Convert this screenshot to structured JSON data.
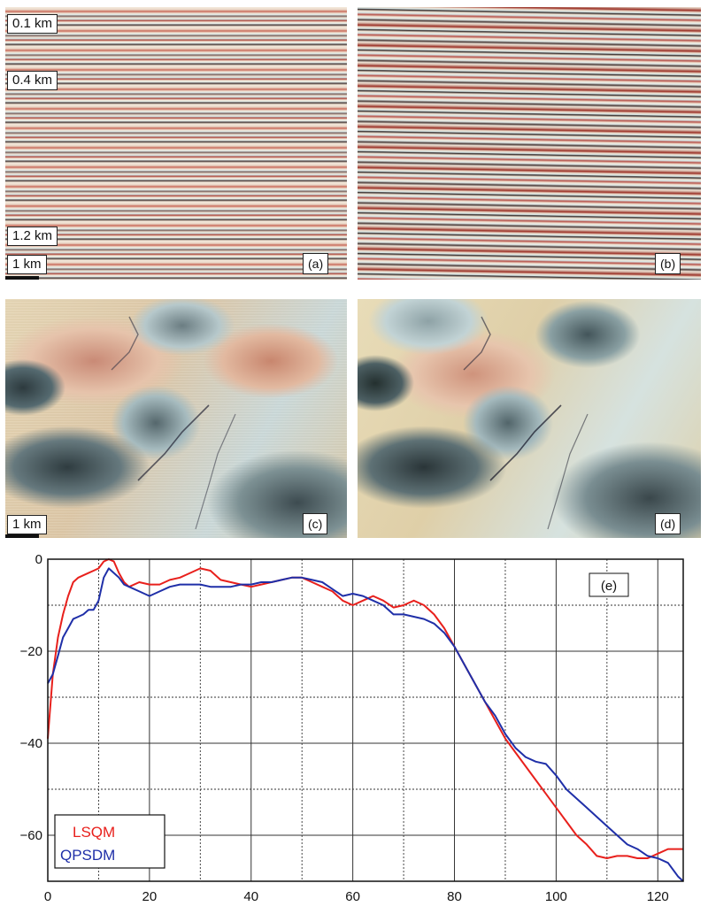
{
  "panels": {
    "a": {
      "tag": "(a)",
      "labels": [
        "0.1 km",
        "0.4 km",
        "1.2 km",
        "1 km"
      ]
    },
    "b": {
      "tag": "(b)"
    },
    "c": {
      "tag": "(c)",
      "scale_label": "1 km"
    },
    "d": {
      "tag": "(d)"
    }
  },
  "chart_data": {
    "type": "line",
    "tag": "(e)",
    "xlim": [
      0,
      125
    ],
    "ylim": [
      -70,
      0
    ],
    "xticks": [
      0,
      20,
      40,
      60,
      80,
      100,
      120
    ],
    "yticks": [
      0,
      -20,
      -40,
      -60
    ],
    "grid": true,
    "legend_position": "bottom-left",
    "series": [
      {
        "name": "LSQM",
        "color": "#e8201c",
        "x": [
          0,
          1,
          2,
          3,
          4,
          5,
          6,
          7,
          8,
          9,
          10,
          11,
          12,
          13,
          14,
          15,
          16,
          18,
          20,
          22,
          24,
          26,
          28,
          30,
          32,
          34,
          36,
          38,
          40,
          42,
          44,
          46,
          48,
          50,
          52,
          54,
          56,
          58,
          60,
          62,
          64,
          66,
          68,
          70,
          72,
          74,
          76,
          78,
          80,
          82,
          84,
          86,
          88,
          90,
          92,
          94,
          96,
          98,
          100,
          102,
          104,
          106,
          108,
          110,
          112,
          114,
          116,
          118,
          120,
          122,
          124,
          125
        ],
        "y": [
          -39,
          -25,
          -17,
          -12,
          -8,
          -5,
          -4,
          -3.5,
          -3,
          -2.5,
          -2,
          -0.5,
          0,
          -0.5,
          -3,
          -5,
          -6,
          -5,
          -5.5,
          -5.5,
          -4.5,
          -4,
          -3,
          -2,
          -2.5,
          -4.5,
          -5,
          -5.5,
          -6,
          -5.5,
          -5,
          -4.5,
          -4,
          -4,
          -5,
          -6,
          -7,
          -9,
          -10,
          -9,
          -8,
          -9,
          -10.5,
          -10,
          -9,
          -10,
          -12,
          -15,
          -19,
          -23,
          -27,
          -31,
          -35,
          -39,
          -42,
          -45,
          -48,
          -51,
          -54,
          -57,
          -60,
          -62,
          -64.5,
          -65,
          -64.5,
          -64.5,
          -65,
          -65,
          -64,
          -63,
          -63,
          -63
        ]
      },
      {
        "name": "QPSDM",
        "color": "#1f2fa8",
        "x": [
          0,
          1,
          2,
          3,
          4,
          5,
          6,
          7,
          8,
          9,
          10,
          11,
          12,
          13,
          14,
          15,
          16,
          18,
          20,
          22,
          24,
          26,
          28,
          30,
          32,
          34,
          36,
          38,
          40,
          42,
          44,
          46,
          48,
          50,
          52,
          54,
          56,
          58,
          60,
          62,
          64,
          66,
          68,
          70,
          72,
          74,
          76,
          78,
          80,
          82,
          84,
          86,
          88,
          90,
          92,
          94,
          96,
          98,
          100,
          102,
          104,
          106,
          108,
          110,
          112,
          114,
          116,
          118,
          120,
          122,
          124,
          125
        ],
        "y": [
          -27,
          -25,
          -21,
          -17,
          -15,
          -13,
          -12.5,
          -12,
          -11,
          -11,
          -9,
          -4,
          -2,
          -3,
          -4,
          -5.5,
          -6,
          -7,
          -8,
          -7,
          -6,
          -5.5,
          -5.5,
          -5.5,
          -6,
          -6,
          -6,
          -5.5,
          -5.5,
          -5,
          -5,
          -4.5,
          -4,
          -4,
          -4.5,
          -5,
          -6.5,
          -8,
          -7.5,
          -8,
          -9,
          -10,
          -12,
          -12,
          -12.5,
          -13,
          -14,
          -16,
          -19,
          -23,
          -27,
          -31,
          -34,
          -38,
          -41,
          -43,
          -44,
          -44.5,
          -47,
          -50,
          -52,
          -54,
          -56,
          -58,
          -60,
          -62,
          -63,
          -64.5,
          -65,
          -66,
          -69,
          -70
        ]
      }
    ]
  }
}
